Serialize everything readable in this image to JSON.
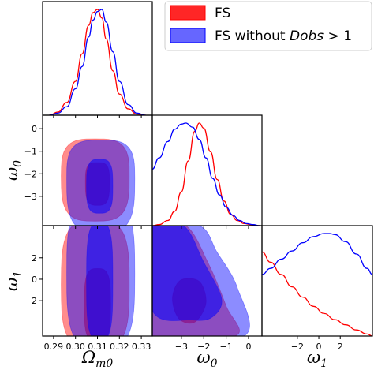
{
  "chart_data": {
    "type": "corner",
    "legend_placement": "top-right",
    "legend": [
      {
        "label": "FS",
        "color": "#ff0000"
      },
      {
        "label": "FS without ",
        "label_italic": "Dobs",
        "label_suffix": " > 1",
        "color": "#0000ff"
      }
    ],
    "colors": {
      "fs": "#ff0000",
      "fs_no_dobs": "#0000ff"
    },
    "parameters": [
      {
        "name": "Ω_m0",
        "label_main": "Ω",
        "label_sub": "m0",
        "range": [
          0.285,
          0.335
        ],
        "ticks": [
          0.29,
          0.3,
          0.31,
          0.32,
          0.33
        ],
        "tick_labels": [
          "0.29",
          "0.30",
          "0.31",
          "0.32",
          "0.33"
        ]
      },
      {
        "name": "ω_0",
        "label_main": "ω",
        "label_sub": "0",
        "range": [
          -4.3,
          0.6
        ],
        "ticks": [
          -3,
          -2,
          -1,
          0
        ],
        "tick_labels": [
          "−3",
          "−2",
          "−1",
          "0"
        ]
      },
      {
        "name": "ω_1",
        "label_main": "ω",
        "label_sub": "1",
        "range": [
          -5.3,
          5.0
        ],
        "ticks": [
          -2,
          0,
          2
        ],
        "tick_labels": [
          "−2",
          "0",
          "2"
        ]
      }
    ],
    "diagonal": [
      {
        "param": "Ω_m0",
        "series": [
          {
            "name": "FS",
            "x": [
              0.288,
              0.292,
              0.296,
              0.3,
              0.303,
              0.306,
              0.308,
              0.31,
              0.312,
              0.314,
              0.317,
              0.32,
              0.324,
              0.328,
              0.332
            ],
            "y": [
              0.0,
              0.03,
              0.12,
              0.32,
              0.58,
              0.85,
              0.97,
              1.0,
              0.92,
              0.72,
              0.42,
              0.2,
              0.06,
              0.01,
              0.0
            ]
          },
          {
            "name": "FS without Dobs > 1",
            "x": [
              0.288,
              0.292,
              0.296,
              0.3,
              0.303,
              0.306,
              0.308,
              0.31,
              0.312,
              0.314,
              0.317,
              0.32,
              0.324,
              0.328,
              0.332
            ],
            "y": [
              0.0,
              0.02,
              0.08,
              0.25,
              0.46,
              0.74,
              0.9,
              0.98,
              1.0,
              0.88,
              0.6,
              0.32,
              0.1,
              0.02,
              0.0
            ]
          }
        ]
      },
      {
        "param": "ω_0",
        "series": [
          {
            "name": "FS",
            "x": [
              -4.3,
              -4.0,
              -3.6,
              -3.3,
              -3.0,
              -2.7,
              -2.4,
              -2.2,
              -2.0,
              -1.7,
              -1.4,
              -1.1,
              -0.8,
              -0.5,
              -0.2,
              0.1,
              0.5
            ],
            "y": [
              0.0,
              0.01,
              0.05,
              0.14,
              0.33,
              0.63,
              0.92,
              1.0,
              0.95,
              0.72,
              0.45,
              0.24,
              0.11,
              0.05,
              0.02,
              0.01,
              0.0
            ]
          },
          {
            "name": "FS without Dobs > 1",
            "x": [
              -4.3,
              -4.0,
              -3.6,
              -3.3,
              -3.0,
              -2.8,
              -2.5,
              -2.2,
              -1.9,
              -1.6,
              -1.3,
              -1.0,
              -0.7,
              -0.4,
              -0.1,
              0.2,
              0.5
            ],
            "y": [
              0.55,
              0.66,
              0.82,
              0.94,
              0.99,
              1.0,
              0.96,
              0.84,
              0.66,
              0.46,
              0.3,
              0.18,
              0.1,
              0.05,
              0.02,
              0.01,
              0.0
            ]
          }
        ]
      },
      {
        "param": "ω_1",
        "series": [
          {
            "name": "FS",
            "x": [
              -5.3,
              -4.5,
              -3.5,
              -2.5,
              -1.5,
              -0.5,
              0.5,
              1.5,
              2.5,
              3.5,
              4.5,
              5.0
            ],
            "y": [
              0.82,
              0.72,
              0.6,
              0.48,
              0.38,
              0.29,
              0.22,
              0.16,
              0.11,
              0.06,
              0.02,
              0.0
            ]
          },
          {
            "name": "FS without Dobs > 1",
            "x": [
              -5.3,
              -4.5,
              -3.5,
              -2.5,
              -1.5,
              -0.5,
              0.5,
              1.0,
              1.5,
              2.5,
              3.5,
              4.5,
              5.0
            ],
            "y": [
              0.6,
              0.66,
              0.75,
              0.83,
              0.91,
              0.97,
              1.0,
              1.0,
              0.99,
              0.92,
              0.8,
              0.66,
              0.6
            ]
          }
        ]
      }
    ],
    "contours": [
      {
        "x_param": "Ω_m0",
        "y_param": "ω_0",
        "series": [
          {
            "name": "FS",
            "levels": [
              {
                "level": "95%",
                "cx": 0.309,
                "cy": -2.1,
                "rx": 0.0155,
                "ry_top": 1.65,
                "ry_bottom": 2.0
              },
              {
                "level": "68%",
                "cx": 0.31,
                "cy": -2.35,
                "rx": 0.0055,
                "ry_top": 0.85,
                "ry_bottom": 1.05
              }
            ]
          },
          {
            "name": "FS without Dobs > 1",
            "levels": [
              {
                "level": "95%",
                "cx": 0.3115,
                "cy": -2.2,
                "rx": 0.0155,
                "ry_top": 1.7,
                "ry_bottom": 2.4
              },
              {
                "level": "68%",
                "cx": 0.311,
                "cy": -2.55,
                "rx": 0.006,
                "ry_top": 1.2,
                "ry_bottom": 1.2
              }
            ]
          }
        ]
      },
      {
        "x_param": "Ω_m0",
        "y_param": "ω_1",
        "series": [
          {
            "name": "FS",
            "levels": [
              {
                "level": "95%",
                "cx": 0.309,
                "cy": -0.5,
                "rx": 0.0155,
                "ry_top": 6.0,
                "ry_bottom": 6.0
              },
              {
                "level": "68%",
                "cx": 0.31,
                "cy": -2.4,
                "rx": 0.006,
                "ry_top": 3.4,
                "ry_bottom": 3.4
              }
            ]
          },
          {
            "name": "FS without Dobs > 1",
            "levels": [
              {
                "level": "95%",
                "cx": 0.3115,
                "cy": 0.5,
                "rx": 0.0155,
                "ry_top": 7.0,
                "ry_bottom": 7.0
              },
              {
                "level": "68%",
                "cx": 0.311,
                "cy": -0.2,
                "rx": 0.006,
                "ry_top": 5.5,
                "ry_bottom": 5.5
              }
            ]
          }
        ]
      },
      {
        "x_param": "ω_0",
        "y_param": "ω_1",
        "series": [
          {
            "name": "FS",
            "levels": [
              {
                "level": "95%",
                "polygon": [
                  [
                    -4.3,
                    5.0
                  ],
                  [
                    -2.8,
                    5.0
                  ],
                  [
                    -1.8,
                    1.5
                  ],
                  [
                    -1.0,
                    -2.5
                  ],
                  [
                    -0.6,
                    -5.3
                  ],
                  [
                    -4.3,
                    -5.3
                  ]
                ]
              },
              {
                "level": "68%",
                "polygon": [
                  [
                    -3.05,
                    -0.1
                  ],
                  [
                    -2.2,
                    -0.2
                  ],
                  [
                    -1.9,
                    -2.2
                  ],
                  [
                    -2.4,
                    -4.0
                  ],
                  [
                    -3.1,
                    -3.7
                  ],
                  [
                    -3.4,
                    -1.8
                  ]
                ]
              }
            ]
          },
          {
            "name": "FS without Dobs > 1",
            "levels": [
              {
                "level": "95%",
                "polygon": [
                  [
                    -4.3,
                    5.0
                  ],
                  [
                    -2.2,
                    5.0
                  ],
                  [
                    -1.4,
                    2.5
                  ],
                  [
                    -0.5,
                    -0.8
                  ],
                  [
                    -0.2,
                    -5.3
                  ],
                  [
                    -4.3,
                    -5.3
                  ]
                ]
              },
              {
                "level": "68%",
                "polygon": [
                  [
                    -4.3,
                    5.0
                  ],
                  [
                    -2.9,
                    5.0
                  ],
                  [
                    -2.0,
                    1.6
                  ],
                  [
                    -1.2,
                    -1.8
                  ],
                  [
                    -1.6,
                    -3.5
                  ],
                  [
                    -2.5,
                    -3.8
                  ],
                  [
                    -4.3,
                    -2.9
                  ]
                ]
              }
            ]
          }
        ]
      }
    ]
  }
}
